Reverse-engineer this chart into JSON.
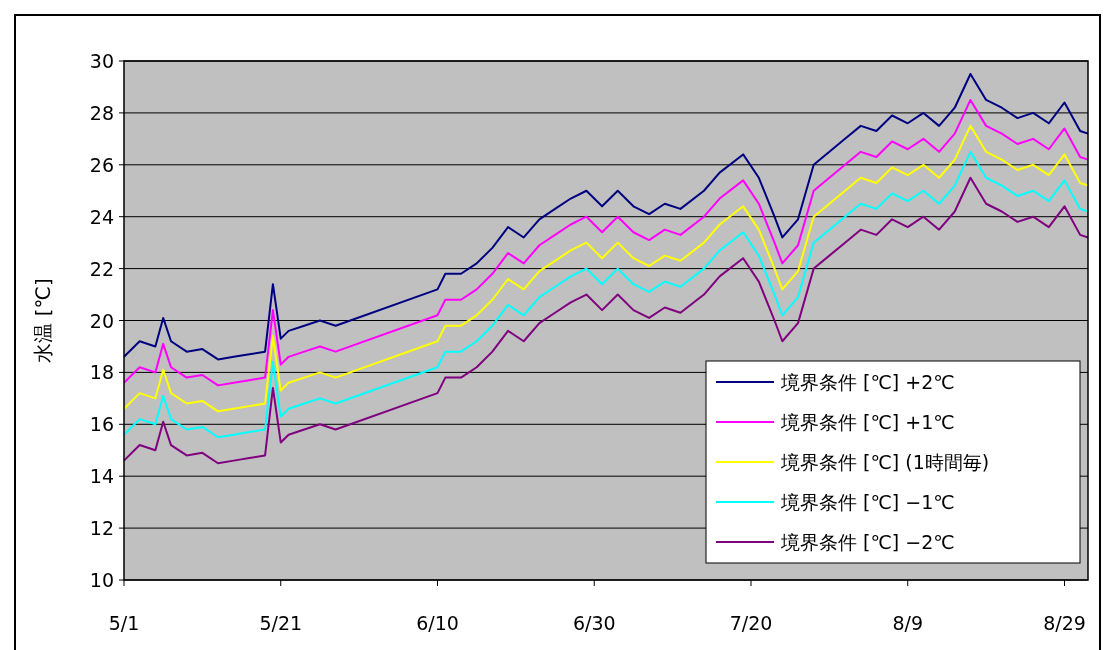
{
  "chart_data": {
    "type": "line",
    "ylabel": "水温 [℃]",
    "xlim": [
      "--05-01",
      "--09-01"
    ],
    "xticks": [
      {
        "value": "--05-01",
        "label": "5/1"
      },
      {
        "value": "--05-21",
        "label": "5/21"
      },
      {
        "value": "--06-10",
        "label": "6/10"
      },
      {
        "value": "--06-30",
        "label": "6/30"
      },
      {
        "value": "--07-20",
        "label": "7/20"
      },
      {
        "value": "--08-09",
        "label": "8/9"
      },
      {
        "value": "--08-29",
        "label": "8/29"
      }
    ],
    "ylim": [
      10,
      30
    ],
    "yticks": [
      10,
      12,
      14,
      16,
      18,
      20,
      22,
      24,
      26,
      28,
      30
    ],
    "grid": "y",
    "legend": "bottom right",
    "x": [
      "--05-01",
      "--05-03",
      "--05-05",
      "--05-06",
      "--05-07",
      "--05-09",
      "--05-11",
      "--05-13",
      "--05-15",
      "--05-17",
      "--05-19",
      "--05-20",
      "--05-21",
      "--05-22",
      "--05-24",
      "--05-26",
      "--05-28",
      "--06-10",
      "--06-11",
      "--06-13",
      "--06-15",
      "--06-17",
      "--06-19",
      "--06-21",
      "--06-23",
      "--06-25",
      "--06-27",
      "--06-29",
      "--07-01",
      "--07-03",
      "--07-05",
      "--07-07",
      "--07-09",
      "--07-11",
      "--07-14",
      "--07-16",
      "--07-19",
      "--07-21",
      "--07-23",
      "--07-24",
      "--07-26",
      "--07-28",
      "--07-30",
      "--08-01",
      "--08-03",
      "--08-05",
      "--08-07",
      "--08-09",
      "--08-11",
      "--08-13",
      "--08-15",
      "--08-17",
      "--08-19",
      "--08-21",
      "--08-23",
      "--08-25",
      "--08-27",
      "--08-29",
      "--08-31",
      "--09-01"
    ],
    "series": [
      {
        "name": "境界条件 [℃] +2℃",
        "color": "#000080",
        "values": [
          18.6,
          19.2,
          19.0,
          20.1,
          19.2,
          18.8,
          18.9,
          18.5,
          18.6,
          18.7,
          18.8,
          21.4,
          19.3,
          19.6,
          19.8,
          20.0,
          19.8,
          21.2,
          21.8,
          21.8,
          22.2,
          22.8,
          23.6,
          23.2,
          23.9,
          24.3,
          24.7,
          25.0,
          24.4,
          25.0,
          24.4,
          24.1,
          24.5,
          24.3,
          25.0,
          25.7,
          26.4,
          25.5,
          24.0,
          23.2,
          23.9,
          26.0,
          26.5,
          27.0,
          27.5,
          27.3,
          27.9,
          27.6,
          28.0,
          27.5,
          28.2,
          29.5,
          28.5,
          28.2,
          27.8,
          28.0,
          27.6,
          28.4,
          27.3,
          27.2
        ]
      },
      {
        "name": "境界条件 [℃] +1℃",
        "color": "#ff00ff",
        "values": [
          17.6,
          18.2,
          18.0,
          19.1,
          18.2,
          17.8,
          17.9,
          17.5,
          17.6,
          17.7,
          17.8,
          20.4,
          18.3,
          18.6,
          18.8,
          19.0,
          18.8,
          20.2,
          20.8,
          20.8,
          21.2,
          21.8,
          22.6,
          22.2,
          22.9,
          23.3,
          23.7,
          24.0,
          23.4,
          24.0,
          23.4,
          23.1,
          23.5,
          23.3,
          24.0,
          24.7,
          25.4,
          24.5,
          23.0,
          22.2,
          22.9,
          25.0,
          25.5,
          26.0,
          26.5,
          26.3,
          26.9,
          26.6,
          27.0,
          26.5,
          27.2,
          28.5,
          27.5,
          27.2,
          26.8,
          27.0,
          26.6,
          27.4,
          26.3,
          26.2
        ]
      },
      {
        "name": "境界条件 [℃] (1時間毎)",
        "color": "#ffff00",
        "values": [
          16.6,
          17.2,
          17.0,
          18.1,
          17.2,
          16.8,
          16.9,
          16.5,
          16.6,
          16.7,
          16.8,
          19.4,
          17.3,
          17.6,
          17.8,
          18.0,
          17.8,
          19.2,
          19.8,
          19.8,
          20.2,
          20.8,
          21.6,
          21.2,
          21.9,
          22.3,
          22.7,
          23.0,
          22.4,
          23.0,
          22.4,
          22.1,
          22.5,
          22.3,
          23.0,
          23.7,
          24.4,
          23.5,
          22.0,
          21.2,
          21.9,
          24.0,
          24.5,
          25.0,
          25.5,
          25.3,
          25.9,
          25.6,
          26.0,
          25.5,
          26.2,
          27.5,
          26.5,
          26.2,
          25.8,
          26.0,
          25.6,
          26.4,
          25.3,
          25.2
        ]
      },
      {
        "name": "境界条件 [℃] −1℃",
        "color": "#00ffff",
        "values": [
          15.6,
          16.2,
          16.0,
          17.1,
          16.2,
          15.8,
          15.9,
          15.5,
          15.6,
          15.7,
          15.8,
          18.4,
          16.3,
          16.6,
          16.8,
          17.0,
          16.8,
          18.2,
          18.8,
          18.8,
          19.2,
          19.8,
          20.6,
          20.2,
          20.9,
          21.3,
          21.7,
          22.0,
          21.4,
          22.0,
          21.4,
          21.1,
          21.5,
          21.3,
          22.0,
          22.7,
          23.4,
          22.5,
          21.0,
          20.2,
          20.9,
          23.0,
          23.5,
          24.0,
          24.5,
          24.3,
          24.9,
          24.6,
          25.0,
          24.5,
          25.2,
          26.5,
          25.5,
          25.2,
          24.8,
          25.0,
          24.6,
          25.4,
          24.3,
          24.2
        ]
      },
      {
        "name": "境界条件 [℃] −2℃",
        "color": "#800080",
        "values": [
          14.6,
          15.2,
          15.0,
          16.1,
          15.2,
          14.8,
          14.9,
          14.5,
          14.6,
          14.7,
          14.8,
          17.4,
          15.3,
          15.6,
          15.8,
          16.0,
          15.8,
          17.2,
          17.8,
          17.8,
          18.2,
          18.8,
          19.6,
          19.2,
          19.9,
          20.3,
          20.7,
          21.0,
          20.4,
          21.0,
          20.4,
          20.1,
          20.5,
          20.3,
          21.0,
          21.7,
          22.4,
          21.5,
          20.0,
          19.2,
          19.9,
          22.0,
          22.5,
          23.0,
          23.5,
          23.3,
          23.9,
          23.6,
          24.0,
          23.5,
          24.2,
          25.5,
          24.5,
          24.2,
          23.8,
          24.0,
          23.6,
          24.4,
          23.3,
          23.2
        ]
      }
    ]
  }
}
